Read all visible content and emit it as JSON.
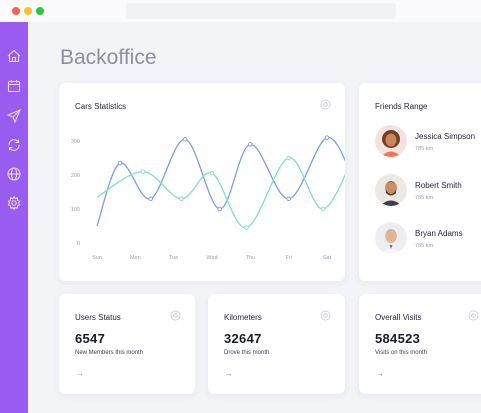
{
  "window": {
    "traffic_lights": [
      "#ff5f57",
      "#febc2e",
      "#28c840"
    ]
  },
  "sidebar": {
    "color": "#9a5cf0",
    "icons": [
      "home-icon",
      "calendar-icon",
      "send-icon",
      "refresh-icon",
      "globe-icon",
      "gear-icon"
    ]
  },
  "page": {
    "title": "Backoffice"
  },
  "cars_statistics": {
    "title": "Cars Statistics"
  },
  "friends": {
    "title": "Friends Range",
    "items": [
      {
        "name": "Jessica Simpson",
        "distance": "785 km"
      },
      {
        "name": "Robert Smith",
        "distance": "785 km"
      },
      {
        "name": "Bryan Adams",
        "distance": "785 km"
      }
    ]
  },
  "stats": [
    {
      "title": "Users Status",
      "value": "6547",
      "subtitle": "New Members this month",
      "arrow": "→"
    },
    {
      "title": "Kilometers",
      "value": "32647",
      "subtitle": "Drove this month",
      "arrow": "→"
    },
    {
      "title": "Overall Visits",
      "value": "584523",
      "subtitle": "Visits on this month",
      "arrow": "→"
    }
  ],
  "chart_data": {
    "type": "line",
    "title": "Cars Statistics",
    "categories": [
      "Sun",
      "Mon",
      "Tue",
      "Wed",
      "Thu",
      "Fri",
      "Sat"
    ],
    "ylim": [
      0,
      300
    ],
    "yticks": [
      "0",
      "100",
      "200",
      "300"
    ],
    "grid": false,
    "colors": [
      "#7c9cf0",
      "#7fe0c2"
    ],
    "series": [
      {
        "x": [
          0,
          0.6,
          1.4,
          2.3,
          3.2,
          4.0,
          5.0,
          6.0,
          6.7
        ],
        "values": [
          50,
          235,
          130,
          305,
          100,
          290,
          130,
          310,
          185
        ]
      },
      {
        "x": [
          0,
          1.2,
          2.2,
          3.0,
          3.9,
          5.0,
          5.9,
          6.8
        ],
        "values": [
          135,
          210,
          130,
          205,
          45,
          250,
          100,
          285
        ]
      }
    ]
  }
}
